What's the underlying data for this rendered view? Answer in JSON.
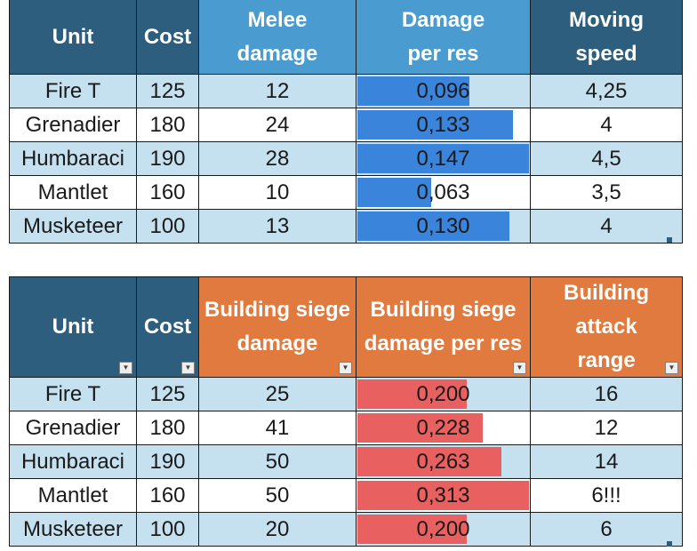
{
  "table1": {
    "headers": [
      "Unit",
      "Cost",
      "Melee damage",
      "Damage per res",
      "Moving speed"
    ],
    "header_colors": [
      "#2e5e7e",
      "#2e5e7e",
      "#4a9bd0",
      "#4a9bd0",
      "#2e5e7e"
    ],
    "bar_color": "#3a84dc",
    "rows": [
      {
        "unit": "Fire T",
        "cost": "125",
        "stat": "12",
        "ratio": "0,096",
        "ratio_value": 0.096,
        "extra": "4,25"
      },
      {
        "unit": "Grenadier",
        "cost": "180",
        "stat": "24",
        "ratio": "0,133",
        "ratio_value": 0.133,
        "extra": "4"
      },
      {
        "unit": "Humbaraci",
        "cost": "190",
        "stat": "28",
        "ratio": "0,147",
        "ratio_value": 0.147,
        "extra": "4,5"
      },
      {
        "unit": "Mantlet",
        "cost": "160",
        "stat": "10",
        "ratio": "0,063",
        "ratio_value": 0.063,
        "extra": "3,5"
      },
      {
        "unit": "Musketeer",
        "cost": "100",
        "stat": "13",
        "ratio": "0,130",
        "ratio_value": 0.13,
        "extra": "4"
      }
    ]
  },
  "table2": {
    "headers": [
      "Unit",
      "Cost",
      "Building siege damage",
      "Building siege damage per res",
      "Building attack range"
    ],
    "header_colors": [
      "#2e5e7e",
      "#2e5e7e",
      "#e07a3e",
      "#e07a3e",
      "#e07a3e"
    ],
    "bar_color": "#e86060",
    "rows": [
      {
        "unit": "Fire T",
        "cost": "125",
        "stat": "25",
        "ratio": "0,200",
        "ratio_value": 0.2,
        "extra": "16"
      },
      {
        "unit": "Grenadier",
        "cost": "180",
        "stat": "41",
        "ratio": "0,228",
        "ratio_value": 0.228,
        "extra": "12"
      },
      {
        "unit": "Humbaraci",
        "cost": "190",
        "stat": "50",
        "ratio": "0,263",
        "ratio_value": 0.263,
        "extra": "14"
      },
      {
        "unit": "Mantlet",
        "cost": "160",
        "stat": "50",
        "ratio": "0,313",
        "ratio_value": 0.313,
        "extra": "6!!!"
      },
      {
        "unit": "Musketeer",
        "cost": "100",
        "stat": "20",
        "ratio": "0,200",
        "ratio_value": 0.2,
        "extra": "6"
      }
    ]
  }
}
